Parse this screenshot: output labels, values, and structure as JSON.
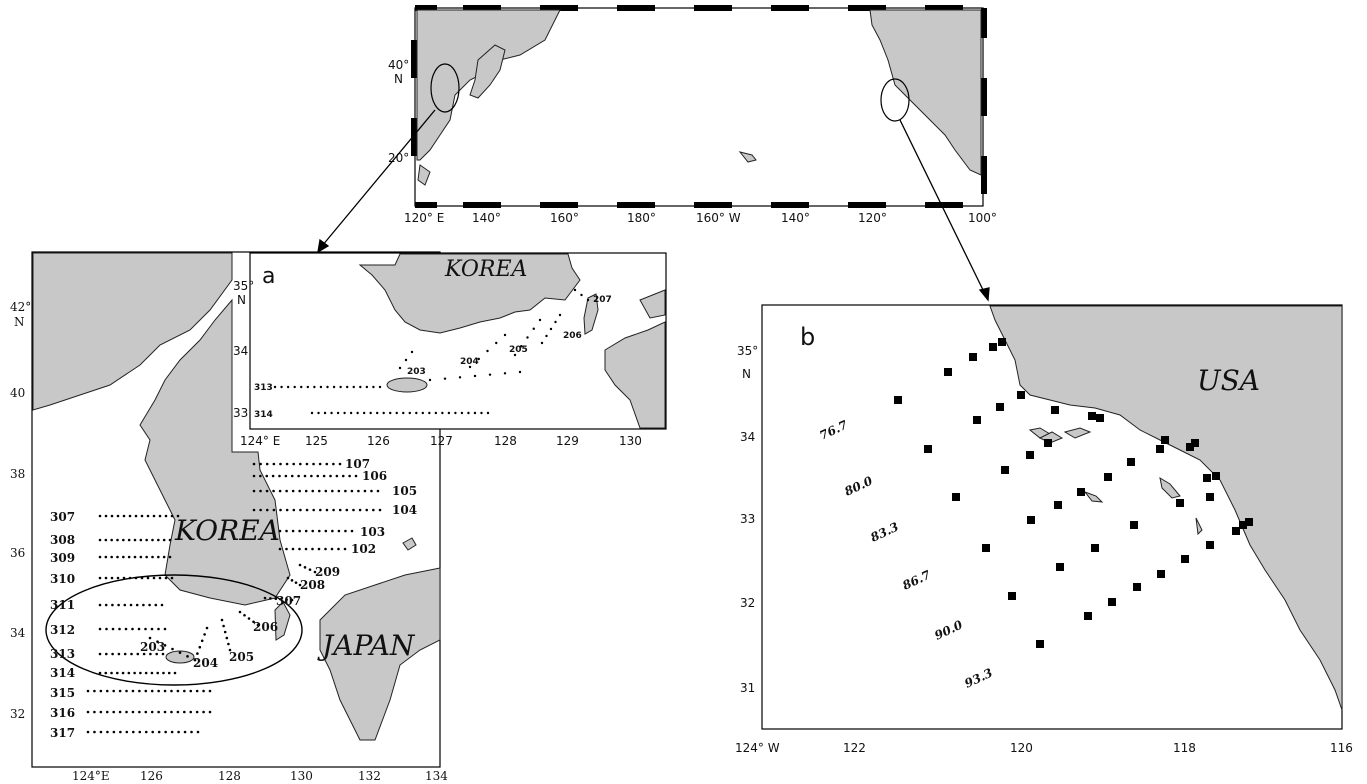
{
  "top_map": {
    "lat_labels": [
      "40°",
      "N",
      "20°"
    ],
    "lon_labels": [
      "120° E",
      "140°",
      "160°",
      "180°",
      "160° W",
      "140°",
      "120°",
      "100°"
    ]
  },
  "left_map": {
    "country_label": "KOREA",
    "japan_label": "JAPAN",
    "lat_labels": [
      "42°",
      "N",
      "40",
      "38",
      "36",
      "34",
      "32"
    ],
    "lon_labels": [
      "124°E",
      "126",
      "128",
      "130",
      "132",
      "134"
    ],
    "west_lines": [
      "307",
      "308",
      "309",
      "310",
      "311",
      "312",
      "313",
      "314",
      "315",
      "316",
      "317"
    ],
    "east_lines": [
      "107",
      "106",
      "105",
      "104",
      "103",
      "102"
    ],
    "south_lines": [
      "203",
      "204",
      "205",
      "206",
      "307",
      "208",
      "209"
    ]
  },
  "inset_a": {
    "panel_label": "a",
    "country_label": "KOREA",
    "lat_labels": [
      "35°",
      "N",
      "34",
      "33"
    ],
    "lon_labels": [
      "124° E",
      "125",
      "126",
      "127",
      "128",
      "129",
      "130"
    ],
    "line_labels": [
      "207",
      "206",
      "205",
      "204",
      "203",
      "313",
      "314"
    ]
  },
  "panel_b": {
    "panel_label": "b",
    "country_label": "USA",
    "lat_labels": [
      "35°",
      "N",
      "34",
      "33",
      "32",
      "31"
    ],
    "lon_labels": [
      "124° W",
      "122",
      "120",
      "118",
      "116"
    ],
    "calcofi_lines": [
      "76.7",
      "80.0",
      "83.3",
      "86.7",
      "90.0",
      "93.3"
    ]
  }
}
